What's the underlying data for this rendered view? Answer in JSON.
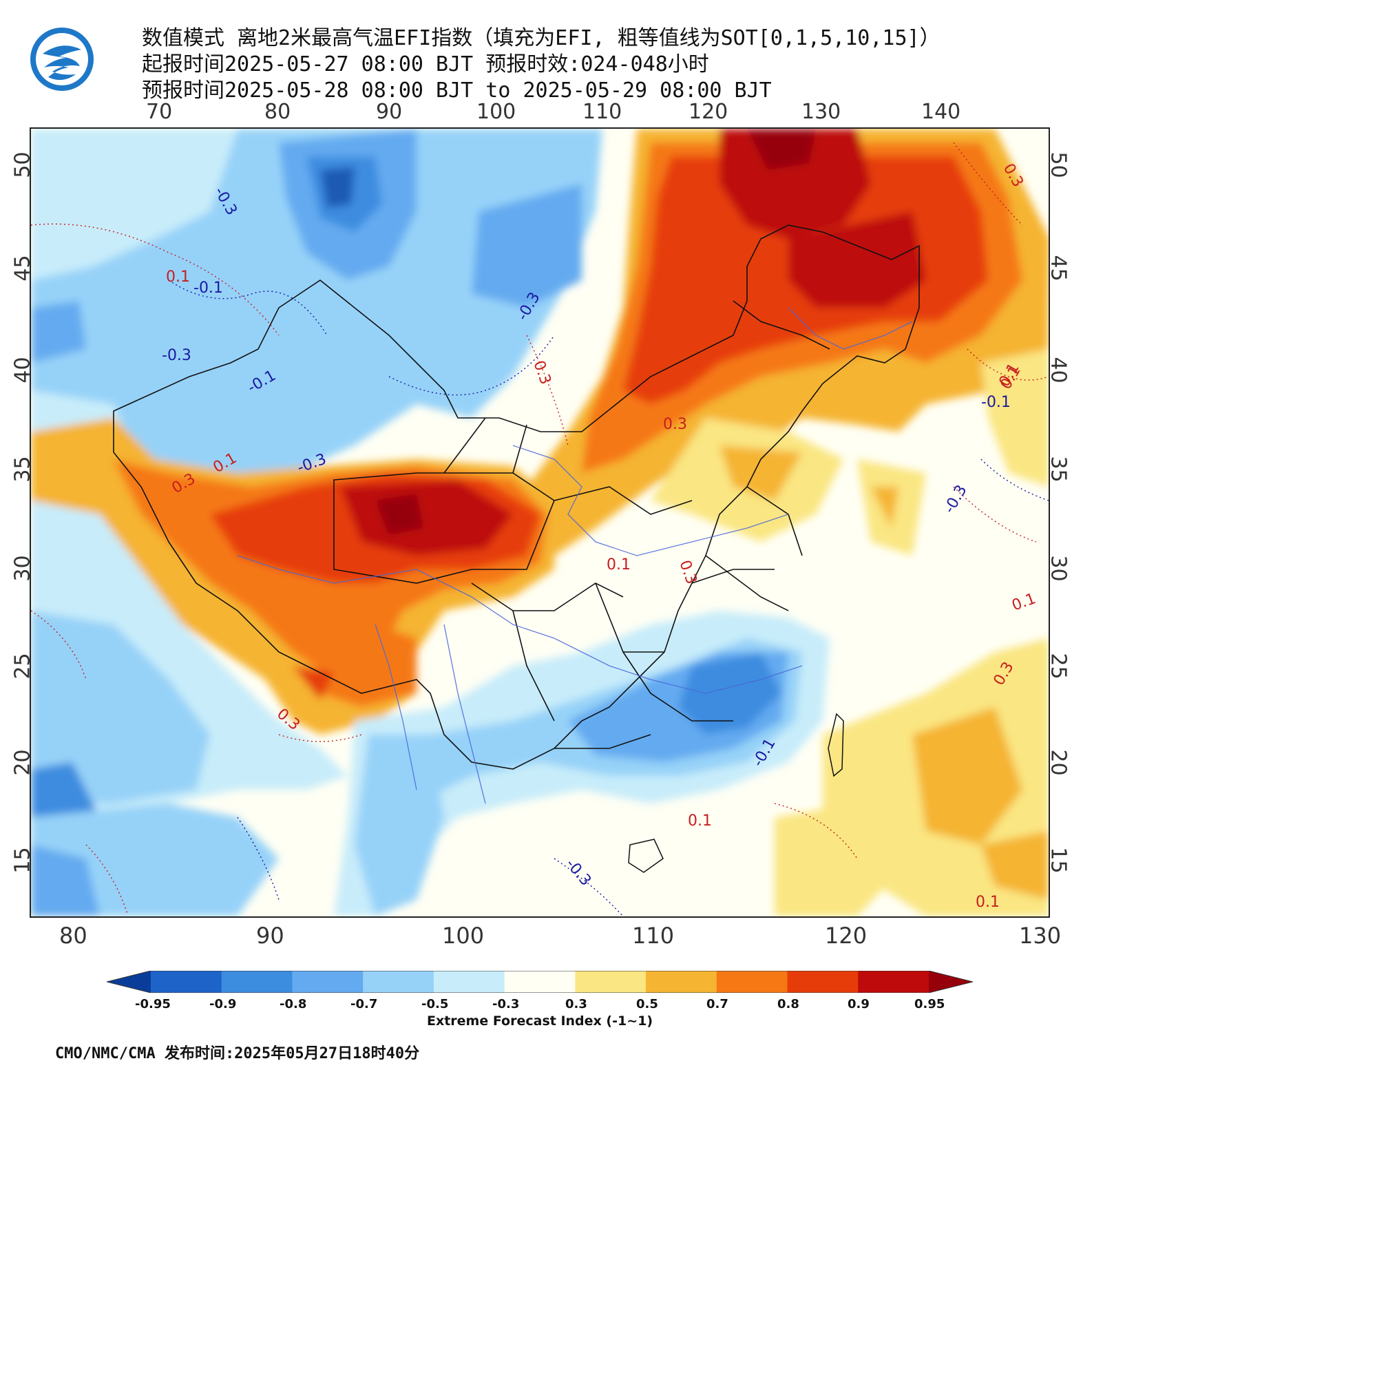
{
  "header": {
    "line1": "数值模式 离地2米最高气温EFI指数（填充为EFI, 粗等值线为SOT[0,1,5,10,15]）",
    "line2": "起报时间2025-05-27 08:00 BJT 预报时效:024-048小时",
    "line3": "预报时间2025-05-28 08:00 BJT to 2025-05-29 08:00 BJT"
  },
  "axes": {
    "top_lon": [
      "70",
      "80",
      "90",
      "100",
      "110",
      "120",
      "130",
      "140"
    ],
    "bottom_lon": [
      "80",
      "90",
      "100",
      "110",
      "120",
      "130"
    ],
    "left_lat": [
      "50",
      "45",
      "40",
      "35",
      "30",
      "25",
      "20",
      "15"
    ],
    "right_lat": [
      "50",
      "45",
      "40",
      "35",
      "30",
      "25",
      "20",
      "15"
    ]
  },
  "contour_labels": [
    {
      "text": "-0.3",
      "color": "#1a1aa0"
    },
    {
      "text": "0.1",
      "color": "#c81e1e"
    },
    {
      "text": "-0.1",
      "color": "#1a1aa0"
    },
    {
      "text": "-0.3",
      "color": "#1a1aa0"
    },
    {
      "text": "-0.1",
      "color": "#1a1aa0"
    },
    {
      "text": "-0.3",
      "color": "#1a1aa0"
    },
    {
      "text": "0.3",
      "color": "#c81e1e"
    },
    {
      "text": "0.3",
      "color": "#c81e1e"
    },
    {
      "text": "0.1",
      "color": "#c81e1e"
    },
    {
      "text": "0.3",
      "color": "#c81e1e"
    },
    {
      "text": "-0.3",
      "color": "#1a1aa0"
    },
    {
      "text": "0.1",
      "color": "#c81e1e"
    },
    {
      "text": "0.3",
      "color": "#c81e1e"
    },
    {
      "text": "-0.1",
      "color": "#1a1aa0"
    },
    {
      "text": "0.1",
      "color": "#c81e1e"
    },
    {
      "text": "0.3",
      "color": "#c81e1e"
    },
    {
      "text": "0.1",
      "color": "#c81e1e"
    },
    {
      "text": "-0.3",
      "color": "#1a1aa0"
    },
    {
      "text": "0.1",
      "color": "#c81e1e"
    },
    {
      "text": "0.3",
      "color": "#c81e1e"
    },
    {
      "text": "0.3",
      "color": "#c81e1e"
    },
    {
      "text": "-0.1",
      "color": "#1a1aa0"
    },
    {
      "text": "0.1",
      "color": "#c81e1e"
    },
    {
      "text": "0.1",
      "color": "#c81e1e"
    },
    {
      "text": "-0.3",
      "color": "#1a1aa0"
    }
  ],
  "colorbar": {
    "title": "Extreme Forecast Index (-1~1)",
    "labels": [
      "-0.95",
      "-0.9",
      "-0.8",
      "-0.7",
      "-0.5",
      "-0.3",
      "0.3",
      "0.5",
      "0.7",
      "0.8",
      "0.9",
      "0.95"
    ],
    "colors": [
      "#0a3d99",
      "#1e64c8",
      "#3c8ce0",
      "#64aaf0",
      "#96d2f8",
      "#c8ecfa",
      "#fffff4",
      "#fae682",
      "#f5b432",
      "#f57814",
      "#e63c0a",
      "#be0a0a",
      "#96000a"
    ]
  },
  "footer": "CMO/NMC/CMA 发布时间:2025年05月27日18时40分",
  "colors": {
    "blue_deep": "#1e5ab4",
    "blue_mid": "#3c8ce0",
    "blue_light": "#96d2f8",
    "blue_pale": "#c8ecfa",
    "yellow": "#fae682",
    "orange": "#f5b432",
    "orange_dark": "#f57814",
    "red": "#e63c0a",
    "red_dark": "#be0a0a"
  }
}
